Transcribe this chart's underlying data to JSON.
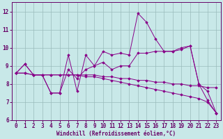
{
  "xlabel": "Windchill (Refroidissement éolien,°C)",
  "background_color": "#c8e8e8",
  "line_color": "#880088",
  "grid_color": "#99bbbb",
  "axis_color": "#660066",
  "xlim": [
    -0.5,
    23.5
  ],
  "ylim": [
    6,
    12.5
  ],
  "yticks": [
    6,
    7,
    8,
    9,
    10,
    11,
    12
  ],
  "xticks": [
    0,
    1,
    2,
    3,
    4,
    5,
    6,
    7,
    8,
    9,
    10,
    11,
    12,
    13,
    14,
    15,
    16,
    17,
    18,
    19,
    20,
    21,
    22,
    23
  ],
  "series": [
    [
      8.6,
      9.1,
      8.5,
      8.5,
      7.5,
      7.5,
      9.6,
      7.6,
      9.6,
      9.0,
      9.8,
      9.6,
      9.7,
      9.6,
      11.9,
      11.4,
      10.5,
      9.8,
      9.8,
      10.0,
      10.1,
      8.0,
      7.1,
      6.4
    ],
    [
      8.6,
      9.1,
      8.5,
      8.5,
      7.5,
      7.5,
      8.8,
      8.3,
      8.8,
      9.0,
      9.2,
      8.8,
      9.0,
      9.0,
      9.7,
      9.7,
      9.8,
      9.8,
      9.8,
      9.9,
      10.1,
      8.0,
      7.6,
      6.4
    ],
    [
      8.6,
      8.6,
      8.5,
      8.5,
      8.5,
      8.5,
      8.5,
      8.5,
      8.5,
      8.5,
      8.4,
      8.4,
      8.3,
      8.3,
      8.2,
      8.2,
      8.1,
      8.1,
      8.0,
      8.0,
      7.9,
      7.9,
      7.8,
      7.8
    ],
    [
      8.6,
      8.6,
      8.5,
      8.5,
      8.5,
      8.5,
      8.5,
      8.5,
      8.4,
      8.4,
      8.3,
      8.2,
      8.1,
      8.0,
      7.9,
      7.8,
      7.7,
      7.6,
      7.5,
      7.4,
      7.3,
      7.2,
      7.0,
      6.4
    ]
  ]
}
